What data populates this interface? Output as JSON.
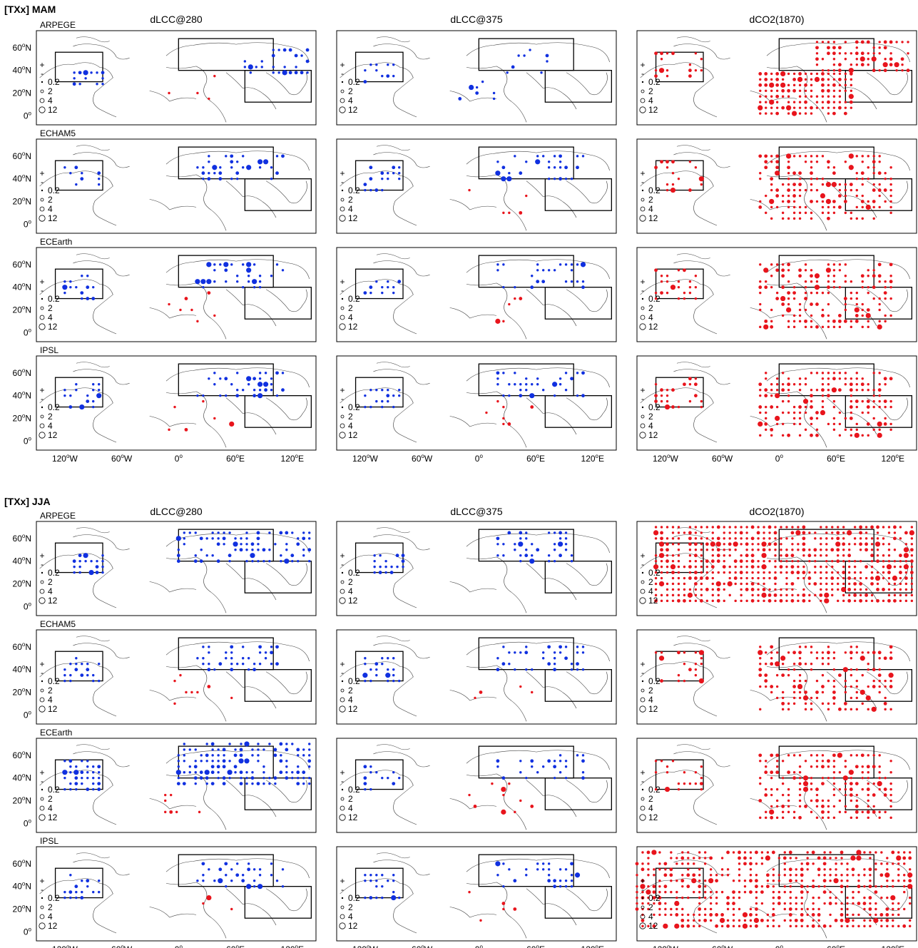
{
  "sections": [
    {
      "title": "[TXx] MAM",
      "season": "MAM"
    },
    {
      "title": "[TXx] JJA",
      "season": "JJA"
    }
  ],
  "columns": [
    "dLCC@280",
    "dLCC@375",
    "dCO2(1870)"
  ],
  "models": [
    "ARPEGE",
    "ECHAM5",
    "ECEarth",
    "IPSL"
  ],
  "legend": {
    "plus": "+",
    "minus": "-",
    "sizes": [
      "0.2",
      "2",
      "4",
      "12"
    ]
  },
  "lat_ticks": [
    {
      "deg": "60",
      "hemi": "N"
    },
    {
      "deg": "40",
      "hemi": "N"
    },
    {
      "deg": "20",
      "hemi": "N"
    },
    {
      "deg": "0",
      "hemi": ""
    }
  ],
  "lon_ticks": [
    {
      "deg": "120",
      "hemi": "W"
    },
    {
      "deg": "60",
      "hemi": "W"
    },
    {
      "deg": "0",
      "hemi": ""
    },
    {
      "deg": "60",
      "hemi": "E"
    },
    {
      "deg": "120",
      "hemi": "E"
    }
  ],
  "colors": {
    "positive": "#e8141c",
    "negative": "#1030e0",
    "coast": "#444444"
  },
  "chart_data": {
    "type": "scatter",
    "map_extent": {
      "lon": [
        -150,
        145
      ],
      "lat": [
        -8,
        75
      ]
    },
    "regions": [
      {
        "lon": [
          -130,
          -80
        ],
        "lat": [
          30,
          56
        ]
      },
      {
        "lon": [
          0,
          100
        ],
        "lat": [
          40,
          68
        ]
      },
      {
        "lon": [
          70,
          140
        ],
        "lat": [
          12,
          40
        ]
      }
    ],
    "panels": [
      {
        "section": 0,
        "column": 0,
        "model": "ARPEGE",
        "clusters": [
          {
            "c": "neg",
            "lon": [
              -110,
              -80
            ],
            "lat": [
              28,
              42
            ],
            "density": 0.55
          },
          {
            "c": "neg",
            "lon": [
              70,
              140
            ],
            "lat": [
              38,
              62
            ],
            "density": 0.4
          },
          {
            "c": "pos",
            "lon": [
              -10,
              40
            ],
            "lat": [
              15,
              35
            ],
            "density": 0.08
          }
        ]
      },
      {
        "section": 0,
        "column": 1,
        "model": "ARPEGE",
        "clusters": [
          {
            "c": "neg",
            "lon": [
              -120,
              -90
            ],
            "lat": [
              30,
              45
            ],
            "density": 0.3
          },
          {
            "c": "neg",
            "lon": [
              30,
              80
            ],
            "lat": [
              38,
              60
            ],
            "density": 0.25
          },
          {
            "c": "neg",
            "lon": [
              -20,
              20
            ],
            "lat": [
              15,
              30
            ],
            "density": 0.15
          }
        ]
      },
      {
        "section": 0,
        "column": 2,
        "model": "ARPEGE",
        "clusters": [
          {
            "c": "pos",
            "lon": [
              -20,
              80
            ],
            "lat": [
              2,
              38
            ],
            "density": 0.9
          },
          {
            "c": "pos",
            "lon": [
              40,
              140
            ],
            "lat": [
              40,
              65
            ],
            "density": 0.7
          },
          {
            "c": "pos",
            "lon": [
              -130,
              -80
            ],
            "lat": [
              35,
              55
            ],
            "density": 0.3
          }
        ]
      },
      {
        "section": 1,
        "column": 0,
        "model": "ARPEGE",
        "clusters": [
          {
            "c": "neg",
            "lon": [
              -110,
              -80
            ],
            "lat": [
              30,
              48
            ],
            "density": 0.8
          },
          {
            "c": "neg",
            "lon": [
              0,
              140
            ],
            "lat": [
              40,
              68
            ],
            "density": 0.5
          }
        ]
      },
      {
        "section": 1,
        "column": 1,
        "model": "ARPEGE",
        "clusters": [
          {
            "c": "neg",
            "lon": [
              -110,
              -80
            ],
            "lat": [
              30,
              48
            ],
            "density": 0.7
          },
          {
            "c": "neg",
            "lon": [
              20,
              100
            ],
            "lat": [
              40,
              65
            ],
            "density": 0.5
          }
        ]
      },
      {
        "section": 1,
        "column": 2,
        "model": "ARPEGE",
        "clusters": [
          {
            "c": "pos",
            "lon": [
              -130,
              140
            ],
            "lat": [
              5,
              70
            ],
            "density": 0.85
          }
        ]
      },
      {
        "section": 1,
        "column": 0,
        "model": "ECEarth",
        "clusters": [
          {
            "c": "neg",
            "lon": [
              -120,
              -80
            ],
            "lat": [
              30,
              55
            ],
            "density": 0.8
          },
          {
            "c": "neg",
            "lon": [
              0,
              140
            ],
            "lat": [
              35,
              70
            ],
            "density": 0.6
          },
          {
            "c": "pos",
            "lon": [
              -20,
              30
            ],
            "lat": [
              10,
              30
            ],
            "density": 0.15
          }
        ]
      },
      {
        "section": 1,
        "column": 2,
        "model": "IPSL",
        "clusters": [
          {
            "c": "pos",
            "lon": [
              -150,
              140
            ],
            "lat": [
              5,
              72
            ],
            "density": 0.7
          }
        ]
      }
    ]
  }
}
